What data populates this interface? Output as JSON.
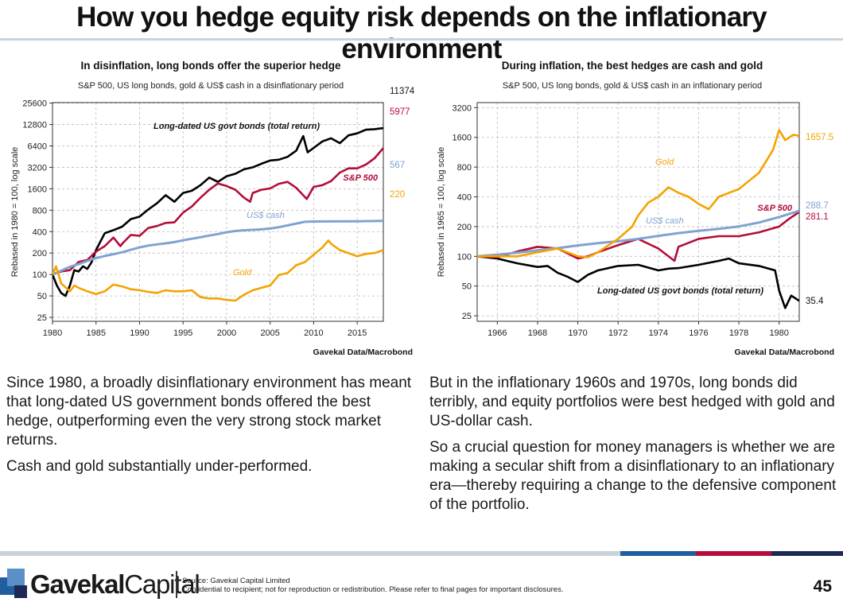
{
  "page": {
    "title": "How you hedge equity risk depends on the inflationary environment",
    "left_text": [
      "Since 1980, a broadly disinflationary environment has meant that long-dated US government bonds offered the best hedge, outperforming even the very strong stock market returns.",
      "Cash and gold substantially under-performed."
    ],
    "right_text": [
      "But in the inflationary 1960s and 1970s, long bonds did terribly, and equity portfolios were best hedged with gold and US-dollar cash.",
      "So a crucial question for money managers is whether we are making a secular shift from a disinflationary to an inflationary era—thereby requiring a change to the defensive component of the portfolio."
    ],
    "logo_bold": "Gavekal",
    "logo_light": "Capital",
    "source_line": "Source: Gavekal Capital Limited",
    "disclaimer": "Confidential to recipient; not for reproduction or redistribution. Please refer to final pages for important disclosures.",
    "page_number": "45"
  },
  "colors": {
    "bonds": "#000000",
    "sp500": "#b30d38",
    "cash": "#7fa3d0",
    "gold": "#f5a300",
    "grid": "#bbbbbb",
    "footer_light": "#c9d3dc",
    "footer_blue": "#1f5fa0",
    "footer_red": "#b30d38",
    "footer_navy": "#1d2a55"
  },
  "chart_data": [
    {
      "type": "line",
      "title": "In disinflation, long bonds offer the superior hedge",
      "subtitle": "S&P 500, US long bonds, gold & US$ cash in a disinflationary period",
      "ylabel": "Rebased in 1980 = 100, log scale",
      "yscale": "log",
      "xlim": [
        1980,
        2018
      ],
      "ylim": [
        22,
        26000
      ],
      "xticks": [
        1980,
        1985,
        1990,
        1995,
        2000,
        2005,
        2010,
        2015
      ],
      "yticks": [
        25,
        50,
        100,
        200,
        400,
        800,
        1600,
        3200,
        6400,
        12800,
        25600
      ],
      "grid": true,
      "source": "Gavekal Data/Macrobond",
      "series": [
        {
          "name": "Long-dated US govt bonds (total return)",
          "color_key": "bonds",
          "end_label": "11374",
          "x": [
            1980,
            1980.5,
            1981,
            1981.5,
            1982,
            1982.5,
            1983,
            1983.5,
            1984,
            1984.5,
            1985,
            1986,
            1987,
            1988,
            1989,
            1990,
            1991,
            1992,
            1993,
            1994,
            1995,
            1996,
            1997,
            1998,
            1999,
            2000,
            2001,
            2002,
            2003,
            2004,
            2005,
            2006,
            2007,
            2008,
            2008.8,
            2009.3,
            2010,
            2011,
            2012,
            2013,
            2014,
            2015,
            2016,
            2017,
            2018
          ],
          "y": [
            100,
            70,
            55,
            50,
            70,
            115,
            110,
            130,
            120,
            150,
            220,
            380,
            420,
            470,
            600,
            650,
            820,
            1000,
            1300,
            1050,
            1400,
            1500,
            1800,
            2300,
            2000,
            2400,
            2600,
            3000,
            3200,
            3600,
            4000,
            4100,
            4500,
            5500,
            8800,
            5200,
            6000,
            7400,
            8200,
            7000,
            9000,
            9600,
            10800,
            11000,
            11374
          ]
        },
        {
          "name": "S&P 500",
          "color_key": "sp500",
          "end_label": "5977",
          "x": [
            1980,
            1981,
            1982,
            1983,
            1984,
            1985,
            1986,
            1987,
            1987.8,
            1988,
            1989,
            1990,
            1991,
            1992,
            1993,
            1994,
            1995,
            1996,
            1997,
            1998,
            1999,
            2000,
            2001,
            2002,
            2002.7,
            2003,
            2004,
            2005,
            2006,
            2007,
            2008,
            2009.2,
            2010,
            2011,
            2012,
            2013,
            2014,
            2015,
            2016,
            2017,
            2018
          ],
          "y": [
            100,
            110,
            115,
            150,
            160,
            210,
            250,
            330,
            250,
            270,
            360,
            350,
            450,
            480,
            530,
            540,
            740,
            900,
            1200,
            1550,
            1900,
            1750,
            1550,
            1200,
            1050,
            1400,
            1550,
            1620,
            1880,
            2000,
            1650,
            1150,
            1700,
            1800,
            2050,
            2700,
            3100,
            3100,
            3500,
            4300,
            5977
          ]
        },
        {
          "name": "US$ cash",
          "color_key": "cash",
          "end_label": "567",
          "x": [
            1980,
            1981,
            1982,
            1983,
            1984,
            1985,
            1986,
            1987,
            1988,
            1989,
            1990,
            1991,
            1992,
            1993,
            1994,
            1995,
            1996,
            1997,
            1998,
            1999,
            2000,
            2001,
            2002,
            2003,
            2004,
            2005,
            2006,
            2007,
            2008,
            2009,
            2010,
            2012,
            2015,
            2018
          ],
          "y": [
            100,
            113,
            128,
            140,
            155,
            170,
            182,
            193,
            205,
            222,
            240,
            255,
            265,
            274,
            285,
            302,
            318,
            334,
            352,
            370,
            392,
            408,
            418,
            424,
            430,
            442,
            462,
            490,
            520,
            550,
            555,
            557,
            560,
            567
          ]
        },
        {
          "name": "Gold",
          "color_key": "gold",
          "end_label": "220",
          "x": [
            1980,
            1980.4,
            1981,
            1982,
            1982.5,
            1983,
            1984,
            1985,
            1986,
            1987,
            1988,
            1989,
            1990,
            1991,
            1992,
            1993,
            1994,
            1995,
            1996,
            1997,
            1998,
            1999,
            2000,
            2001,
            2002,
            2003,
            2004,
            2005,
            2006,
            2007,
            2008,
            2009,
            2010,
            2011,
            2011.7,
            2012,
            2013,
            2014,
            2015,
            2016,
            2017,
            2018
          ],
          "y": [
            100,
            130,
            75,
            58,
            70,
            65,
            58,
            53,
            58,
            72,
            68,
            62,
            60,
            57,
            55,
            60,
            58,
            58,
            60,
            48,
            46,
            46,
            44,
            43,
            52,
            60,
            65,
            70,
            98,
            105,
            135,
            150,
            190,
            240,
            300,
            270,
            220,
            200,
            180,
            195,
            200,
            220
          ]
        }
      ],
      "annotations": [
        {
          "text": "Long-dated US govt bonds (total return)",
          "color_key": "bonds"
        },
        {
          "text": "S&P 500",
          "color_key": "sp500"
        },
        {
          "text": "US$ cash",
          "color_key": "cash"
        },
        {
          "text": "Gold",
          "color_key": "gold"
        }
      ]
    },
    {
      "type": "line",
      "title": "During inflation, the best hedges are cash and gold",
      "subtitle": "S&P 500, US long bonds, gold & US$ cash in an inflationary period",
      "ylabel": "Rebased in 1965 = 100, log scale",
      "yscale": "log",
      "xlim": [
        1965,
        1981
      ],
      "ylim": [
        22,
        3600
      ],
      "xticks": [
        1966,
        1968,
        1970,
        1972,
        1974,
        1976,
        1978,
        1980
      ],
      "yticks": [
        25,
        50,
        100,
        200,
        400,
        800,
        1600,
        3200
      ],
      "grid": true,
      "source": "Gavekal Data/Macrobond",
      "series": [
        {
          "name": "Long-dated US govt bonds (total return)",
          "color_key": "bonds",
          "end_label": "35.4",
          "x": [
            1965,
            1966,
            1967,
            1968,
            1968.5,
            1969,
            1969.5,
            1970,
            1970.5,
            1971,
            1972,
            1973,
            1974,
            1974.5,
            1975,
            1976,
            1977,
            1977.5,
            1978,
            1979,
            1979.8,
            1980,
            1980.3,
            1980.6,
            1981
          ],
          "y": [
            100,
            95,
            85,
            78,
            80,
            68,
            62,
            55,
            65,
            72,
            80,
            82,
            72,
            75,
            76,
            82,
            90,
            95,
            85,
            80,
            72,
            45,
            30,
            40,
            35.4
          ]
        },
        {
          "name": "S&P 500",
          "color_key": "sp500",
          "end_label": "281.1",
          "x": [
            1965,
            1966,
            1967,
            1968,
            1969,
            1970,
            1970.5,
            1971,
            1972,
            1973,
            1974,
            1974.8,
            1975,
            1976,
            1977,
            1978,
            1979,
            1980,
            1980.5,
            1981
          ],
          "y": [
            100,
            98,
            112,
            125,
            120,
            95,
            100,
            110,
            130,
            150,
            120,
            90,
            125,
            150,
            160,
            160,
            175,
            200,
            240,
            281.1
          ]
        },
        {
          "name": "US$ cash",
          "color_key": "cash",
          "end_label": "288.7",
          "x": [
            1965,
            1966,
            1967,
            1968,
            1969,
            1970,
            1971,
            1972,
            1973,
            1974,
            1975,
            1976,
            1977,
            1978,
            1979,
            1980,
            1981
          ],
          "y": [
            100,
            104,
            109,
            115,
            121,
            129,
            136,
            142,
            150,
            161,
            172,
            181,
            190,
            201,
            220,
            250,
            288.7
          ]
        },
        {
          "name": "Gold",
          "color_key": "gold",
          "end_label": "1657.5",
          "x": [
            1965,
            1966,
            1967,
            1968,
            1969,
            1970,
            1970.5,
            1971,
            1972,
            1972.7,
            1973,
            1973.5,
            1974,
            1974.5,
            1975,
            1975.5,
            1976,
            1976.5,
            1977,
            1978,
            1979,
            1979.7,
            1980,
            1980.3,
            1980.7,
            1981
          ],
          "y": [
            100,
            100,
            100,
            110,
            120,
            100,
            98,
            110,
            150,
            200,
            260,
            350,
            400,
            500,
            440,
            400,
            340,
            300,
            400,
            480,
            700,
            1200,
            1900,
            1500,
            1700,
            1657.5
          ]
        }
      ],
      "annotations": [
        {
          "text": "Gold",
          "color_key": "gold"
        },
        {
          "text": "S&P 500",
          "color_key": "sp500"
        },
        {
          "text": "US$ cash",
          "color_key": "cash"
        },
        {
          "text": "Long-dated US govt bonds (total return)",
          "color_key": "bonds"
        }
      ]
    }
  ]
}
